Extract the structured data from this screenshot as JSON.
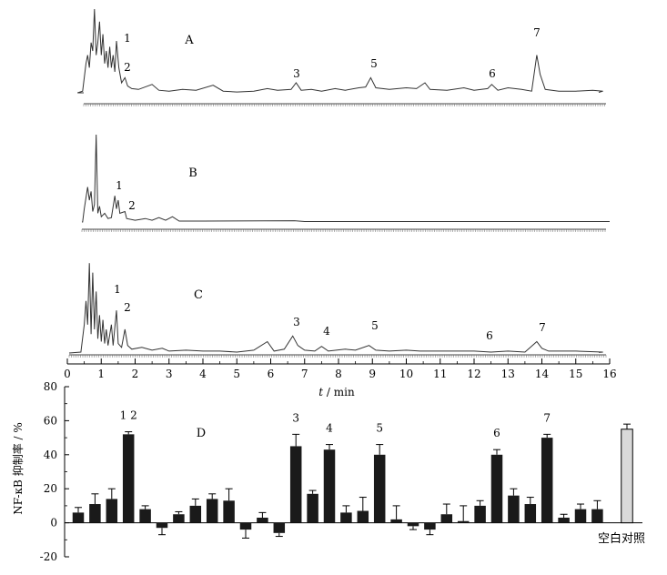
{
  "chart_data": [
    {
      "type": "line",
      "panel_label": "A",
      "x_unit": "min",
      "xlim": [
        0,
        16
      ],
      "series": [
        {
          "points": [
            [
              0,
              0
            ],
            [
              0.3,
              0
            ],
            [
              0.45,
              0.02
            ],
            [
              0.55,
              0.35
            ],
            [
              0.6,
              0.45
            ],
            [
              0.65,
              0.3
            ],
            [
              0.7,
              0.6
            ],
            [
              0.75,
              0.5
            ],
            [
              0.8,
              1.0
            ],
            [
              0.85,
              0.45
            ],
            [
              0.9,
              0.6
            ],
            [
              0.95,
              0.85
            ],
            [
              1.0,
              0.45
            ],
            [
              1.05,
              0.7
            ],
            [
              1.1,
              0.35
            ],
            [
              1.15,
              0.5
            ],
            [
              1.2,
              0.3
            ],
            [
              1.25,
              0.55
            ],
            [
              1.3,
              0.3
            ],
            [
              1.35,
              0.45
            ],
            [
              1.4,
              0.25
            ],
            [
              1.45,
              0.62
            ],
            [
              1.52,
              0.3
            ],
            [
              1.6,
              0.12
            ],
            [
              1.7,
              0.18
            ],
            [
              1.78,
              0.08
            ],
            [
              1.9,
              0.05
            ],
            [
              2.1,
              0.04
            ],
            [
              2.5,
              0.1
            ],
            [
              2.7,
              0.03
            ],
            [
              3.0,
              0.02
            ],
            [
              3.4,
              0.04
            ],
            [
              3.8,
              0.03
            ],
            [
              4.3,
              0.09
            ],
            [
              4.6,
              0.02
            ],
            [
              5.0,
              0.01
            ],
            [
              5.5,
              0.02
            ],
            [
              5.9,
              0.05
            ],
            [
              6.2,
              0.03
            ],
            [
              6.6,
              0.04
            ],
            [
              6.75,
              0.12
            ],
            [
              6.9,
              0.03
            ],
            [
              7.2,
              0.04
            ],
            [
              7.5,
              0.02
            ],
            [
              7.9,
              0.05
            ],
            [
              8.2,
              0.03
            ],
            [
              8.6,
              0.06
            ],
            [
              8.8,
              0.07
            ],
            [
              8.95,
              0.18
            ],
            [
              9.1,
              0.06
            ],
            [
              9.5,
              0.04
            ],
            [
              10.0,
              0.06
            ],
            [
              10.3,
              0.05
            ],
            [
              10.55,
              0.12
            ],
            [
              10.7,
              0.04
            ],
            [
              11.2,
              0.03
            ],
            [
              11.7,
              0.06
            ],
            [
              12.0,
              0.03
            ],
            [
              12.4,
              0.05
            ],
            [
              12.52,
              0.1
            ],
            [
              12.7,
              0.03
            ],
            [
              13.0,
              0.06
            ],
            [
              13.4,
              0.04
            ],
            [
              13.7,
              0.02
            ],
            [
              13.85,
              0.45
            ],
            [
              13.95,
              0.22
            ],
            [
              14.1,
              0.04
            ],
            [
              14.5,
              0.02
            ],
            [
              15.0,
              0.02
            ],
            [
              15.5,
              0.03
            ],
            [
              15.8,
              0.02
            ]
          ]
        }
      ],
      "peak_labels": [
        {
          "label": "1",
          "x": 1.75
        },
        {
          "label": "2",
          "x": 1.75
        },
        {
          "label": "3",
          "x": 6.75
        },
        {
          "label": "5",
          "x": 9.0
        },
        {
          "label": "6",
          "x": 12.5
        },
        {
          "label": "7",
          "x": 13.9
        }
      ]
    },
    {
      "type": "line",
      "panel_label": "B",
      "x_unit": "min",
      "xlim": [
        0,
        16
      ],
      "series": [
        {
          "points": [
            [
              0,
              0
            ],
            [
              0.45,
              0
            ],
            [
              0.5,
              0.15
            ],
            [
              0.6,
              0.4
            ],
            [
              0.65,
              0.25
            ],
            [
              0.7,
              0.35
            ],
            [
              0.75,
              0.12
            ],
            [
              0.8,
              0.2
            ],
            [
              0.85,
              1.0
            ],
            [
              0.9,
              0.1
            ],
            [
              0.95,
              0.18
            ],
            [
              1.0,
              0.06
            ],
            [
              1.1,
              0.1
            ],
            [
              1.2,
              0.04
            ],
            [
              1.3,
              0.05
            ],
            [
              1.4,
              0.3
            ],
            [
              1.45,
              0.15
            ],
            [
              1.5,
              0.25
            ],
            [
              1.55,
              0.1
            ],
            [
              1.7,
              0.12
            ],
            [
              1.75,
              0.04
            ],
            [
              2.0,
              0.02
            ],
            [
              2.3,
              0.04
            ],
            [
              2.5,
              0.02
            ],
            [
              2.7,
              0.05
            ],
            [
              2.9,
              0.02
            ],
            [
              3.1,
              0.06
            ],
            [
              3.3,
              0.01
            ],
            [
              4.0,
              0.01
            ],
            [
              6.7,
              0.015
            ],
            [
              7.0,
              0.005
            ],
            [
              16,
              0.005
            ]
          ]
        }
      ],
      "peak_labels": [
        {
          "label": "1",
          "x": 1.45
        },
        {
          "label": "2",
          "x": 1.75
        }
      ]
    },
    {
      "type": "line",
      "panel_label": "C",
      "x_unit": "min",
      "xlim": [
        0,
        16
      ],
      "series": [
        {
          "points": [
            [
              0,
              0
            ],
            [
              0.4,
              0.01
            ],
            [
              0.5,
              0.3
            ],
            [
              0.55,
              0.55
            ],
            [
              0.6,
              0.3
            ],
            [
              0.65,
              0.95
            ],
            [
              0.7,
              0.2
            ],
            [
              0.75,
              0.85
            ],
            [
              0.8,
              0.25
            ],
            [
              0.85,
              0.65
            ],
            [
              0.9,
              0.15
            ],
            [
              0.95,
              0.4
            ],
            [
              1.0,
              0.12
            ],
            [
              1.05,
              0.35
            ],
            [
              1.1,
              0.1
            ],
            [
              1.15,
              0.25
            ],
            [
              1.2,
              0.08
            ],
            [
              1.3,
              0.3
            ],
            [
              1.35,
              0.08
            ],
            [
              1.45,
              0.45
            ],
            [
              1.5,
              0.1
            ],
            [
              1.6,
              0.06
            ],
            [
              1.7,
              0.25
            ],
            [
              1.78,
              0.08
            ],
            [
              1.9,
              0.04
            ],
            [
              2.2,
              0.06
            ],
            [
              2.5,
              0.03
            ],
            [
              2.8,
              0.05
            ],
            [
              3.0,
              0.02
            ],
            [
              3.5,
              0.03
            ],
            [
              4.0,
              0.02
            ],
            [
              4.5,
              0.02
            ],
            [
              5.0,
              0.01
            ],
            [
              5.5,
              0.03
            ],
            [
              5.9,
              0.12
            ],
            [
              6.1,
              0.02
            ],
            [
              6.4,
              0.04
            ],
            [
              6.65,
              0.18
            ],
            [
              6.8,
              0.08
            ],
            [
              7.0,
              0.03
            ],
            [
              7.3,
              0.02
            ],
            [
              7.5,
              0.07
            ],
            [
              7.7,
              0.02
            ],
            [
              8.2,
              0.04
            ],
            [
              8.5,
              0.03
            ],
            [
              8.9,
              0.08
            ],
            [
              9.1,
              0.03
            ],
            [
              9.5,
              0.02
            ],
            [
              10.0,
              0.03
            ],
            [
              10.4,
              0.02
            ],
            [
              11.0,
              0.02
            ],
            [
              11.5,
              0.02
            ],
            [
              12.0,
              0.02
            ],
            [
              12.5,
              0.01
            ],
            [
              13.0,
              0.02
            ],
            [
              13.5,
              0.01
            ],
            [
              13.85,
              0.12
            ],
            [
              14.0,
              0.05
            ],
            [
              14.2,
              0.02
            ],
            [
              15.0,
              0.02
            ],
            [
              15.8,
              0.01
            ]
          ]
        }
      ],
      "peak_labels": [
        {
          "label": "1",
          "x": 1.45
        },
        {
          "label": "2",
          "x": 1.75
        },
        {
          "label": "3",
          "x": 6.75
        },
        {
          "label": "4",
          "x": 7.5
        },
        {
          "label": "5",
          "x": 9.0
        },
        {
          "label": "6",
          "x": 12.5
        },
        {
          "label": "7",
          "x": 13.9
        }
      ]
    },
    {
      "type": "bar",
      "panel_label": "D",
      "x_axis": {
        "ticks": [
          0,
          1,
          2,
          3,
          4,
          5,
          6,
          7,
          8,
          9,
          10,
          11,
          12,
          13,
          14,
          15,
          16
        ],
        "label_italic": "t",
        "label_rest": " / min",
        "range": [
          0,
          16
        ]
      },
      "ylabel": "NF-κB 抑制率 / %",
      "ylim": [
        -20,
        80
      ],
      "y_ticks": [
        -20,
        0,
        20,
        40,
        60,
        80
      ],
      "categories": [
        "0.25",
        "0.75",
        "1.25",
        "1.75",
        "2.25",
        "2.75",
        "3.25",
        "3.75",
        "4.25",
        "4.75",
        "5.25",
        "5.75",
        "6.25",
        "6.75",
        "7.25",
        "7.75",
        "8.25",
        "8.75",
        "9.25",
        "9.75",
        "10.25",
        "10.75",
        "11.25",
        "11.75",
        "12.25",
        "12.75",
        "13.25",
        "13.75",
        "14.25",
        "14.75",
        "15.25",
        "15.75"
      ],
      "values": [
        6,
        11,
        14,
        52,
        8,
        -3,
        5,
        10,
        14,
        13,
        -4,
        3,
        -6,
        45,
        17,
        43,
        6,
        7,
        40,
        2,
        -2,
        -4,
        5,
        1,
        10,
        40,
        16,
        11,
        50,
        3,
        8,
        8
      ],
      "errors": [
        3,
        6,
        6,
        1.5,
        2,
        4,
        1.5,
        4,
        3,
        7,
        5,
        3,
        2,
        7,
        2,
        3,
        4,
        8,
        6,
        8,
        2,
        3,
        6,
        9,
        3,
        3,
        4,
        4,
        2,
        2,
        3,
        5
      ],
      "blank_control": {
        "label": "空白对照",
        "value": 55,
        "error": 3,
        "color": "#d9d9d9"
      },
      "peak_labels": [
        {
          "label": "1 2",
          "index": 3
        },
        {
          "label": "3",
          "index": 13
        },
        {
          "label": "4",
          "index": 15
        },
        {
          "label": "5",
          "index": 18
        },
        {
          "label": "6",
          "index": 25
        },
        {
          "label": "7",
          "index": 28
        }
      ],
      "bar_color": "#1a1a1a"
    }
  ]
}
